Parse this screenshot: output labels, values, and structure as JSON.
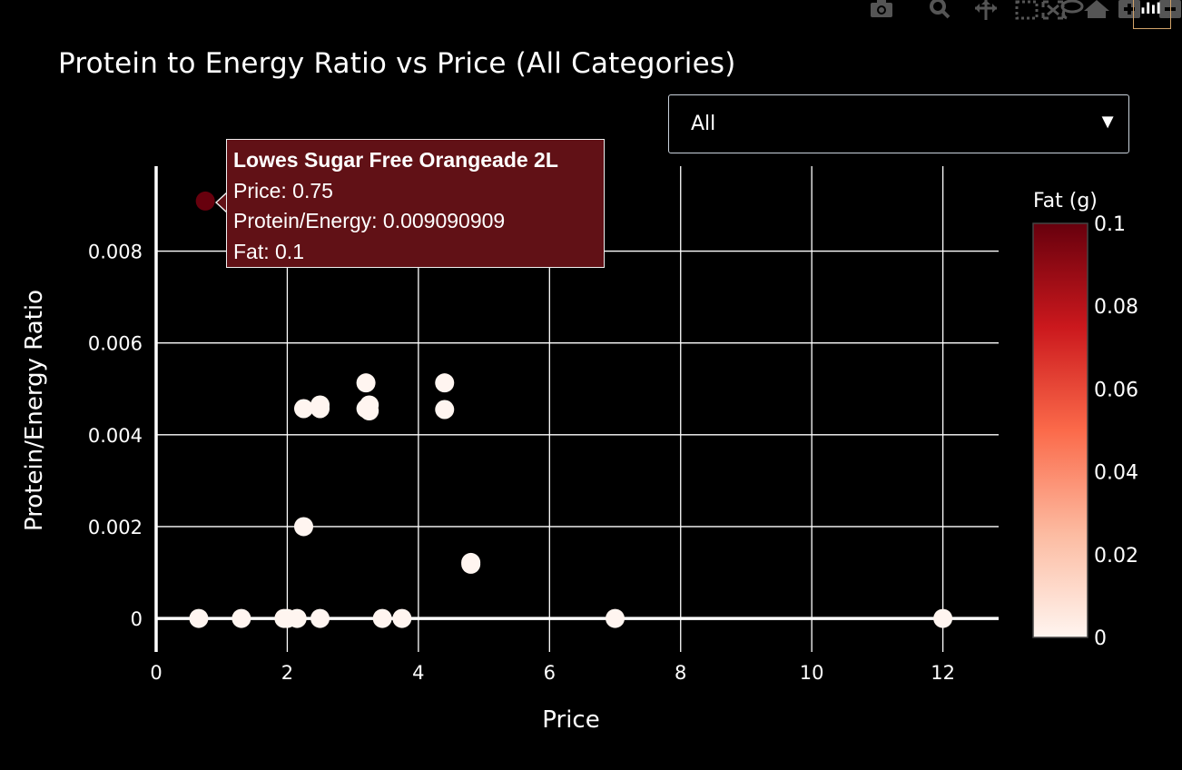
{
  "modebar": {
    "buttons": [
      {
        "name": "camera-icon",
        "tip": "Download plot as a png"
      },
      {
        "name": "zoom-icon",
        "tip": "Zoom"
      },
      {
        "name": "pan-icon",
        "tip": "Pan"
      },
      {
        "name": "box-select-icon",
        "tip": "Box Select"
      },
      {
        "name": "lasso-select-icon",
        "tip": "Lasso Select"
      },
      {
        "name": "zoom-in-icon",
        "tip": "Zoom in"
      },
      {
        "name": "zoom-out-icon",
        "tip": "Zoom out"
      },
      {
        "name": "autoscale-icon",
        "tip": "Autoscale"
      },
      {
        "name": "reset-axes-icon",
        "tip": "Reset axes"
      },
      {
        "name": "plotly-logo-icon",
        "tip": "Produced with Plotly"
      }
    ]
  },
  "dropdown": {
    "value": "All",
    "arrow": "▼"
  },
  "tooltip": {
    "name": "Lowes Sugar Free Orangeade 2L",
    "price_line": "Price: 0.75",
    "ratio_line": "Protein/Energy: 0.009090909",
    "fat_line": "Fat: 0.1"
  },
  "colors": {
    "background": "#000000",
    "grid": "#ffffff",
    "colorscale": [
      "#fff5f0",
      "#fcbba1",
      "#fb6a4a",
      "#cb181d",
      "#67000d"
    ]
  },
  "chart_data": {
    "type": "scatter",
    "title": "Protein to Energy Ratio vs Price (All Categories)",
    "xlabel": "Price",
    "ylabel": "Protein/Energy Ratio",
    "xlim": [
      0,
      12.85
    ],
    "ylim": [
      -0.00073,
      0.00985
    ],
    "xticks": [
      0,
      2,
      4,
      6,
      8,
      10,
      12
    ],
    "xtick_labels": [
      "0",
      "2",
      "4",
      "6",
      "8",
      "10",
      "12"
    ],
    "yticks": [
      0,
      0.002,
      0.004,
      0.006,
      0.008
    ],
    "ytick_labels": [
      "0",
      "0.002",
      "0.004",
      "0.006",
      "0.008"
    ],
    "grid": true,
    "colorbar": {
      "title": "Fat (g)",
      "range": [
        0,
        0.1
      ],
      "ticks": [
        0,
        0.02,
        0.04,
        0.06,
        0.08,
        0.1
      ],
      "tick_labels": [
        "0",
        "0.02",
        "0.04",
        "0.06",
        "0.08",
        "0.1"
      ]
    },
    "points": [
      {
        "x": 0.75,
        "y": 0.00909,
        "fat": 0.1
      },
      {
        "x": 0.65,
        "y": 0,
        "fat": 0
      },
      {
        "x": 1.3,
        "y": 0,
        "fat": 0
      },
      {
        "x": 1.95,
        "y": 0,
        "fat": 0
      },
      {
        "x": 2.0,
        "y": 0,
        "fat": 0
      },
      {
        "x": 2.15,
        "y": 0,
        "fat": 0
      },
      {
        "x": 2.5,
        "y": 0,
        "fat": 0
      },
      {
        "x": 3.45,
        "y": 0,
        "fat": 0
      },
      {
        "x": 3.75,
        "y": 0,
        "fat": 0
      },
      {
        "x": 7.0,
        "y": 0,
        "fat": 0
      },
      {
        "x": 12.0,
        "y": 0,
        "fat": 0
      },
      {
        "x": 2.25,
        "y": 0.002,
        "fat": 0
      },
      {
        "x": 2.25,
        "y": 0.00457,
        "fat": 0
      },
      {
        "x": 2.5,
        "y": 0.00457,
        "fat": 0
      },
      {
        "x": 2.5,
        "y": 0.00465,
        "fat": 0
      },
      {
        "x": 3.2,
        "y": 0.00513,
        "fat": 0
      },
      {
        "x": 3.2,
        "y": 0.00457,
        "fat": 0
      },
      {
        "x": 3.25,
        "y": 0.00465,
        "fat": 0
      },
      {
        "x": 3.25,
        "y": 0.00452,
        "fat": 0
      },
      {
        "x": 4.4,
        "y": 0.00513,
        "fat": 0
      },
      {
        "x": 4.4,
        "y": 0.00455,
        "fat": 0
      },
      {
        "x": 4.8,
        "y": 0.00118,
        "fat": 0
      },
      {
        "x": 4.8,
        "y": 0.00122,
        "fat": 0
      }
    ]
  }
}
